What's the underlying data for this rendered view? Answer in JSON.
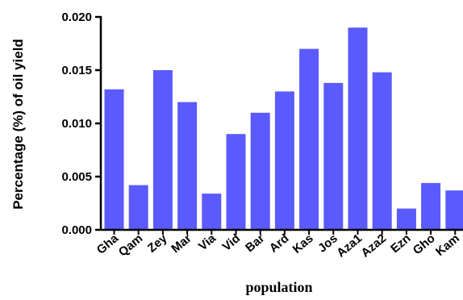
{
  "chart_data": {
    "type": "bar",
    "title": "",
    "xlabel": "population",
    "ylabel": "Percentage (%) of oil yield",
    "ylim": [
      0,
      0.02
    ],
    "yticks": [
      "0.000",
      "0.005",
      "0.010",
      "0.015",
      "0.020"
    ],
    "grid": false,
    "bar_color": "#5a5aff",
    "categories": [
      "Gha",
      "Qam",
      "Zey",
      "Mar",
      "Via",
      "Vid",
      "Bar",
      "Ard",
      "Kas",
      "Jos",
      "Aza1",
      "Aza2",
      "Ezn",
      "Gho",
      "Kam"
    ],
    "values": [
      0.0132,
      0.0042,
      0.015,
      0.012,
      0.0034,
      0.009,
      0.011,
      0.013,
      0.017,
      0.0138,
      0.019,
      0.0148,
      0.002,
      0.0044,
      0.0037
    ]
  }
}
